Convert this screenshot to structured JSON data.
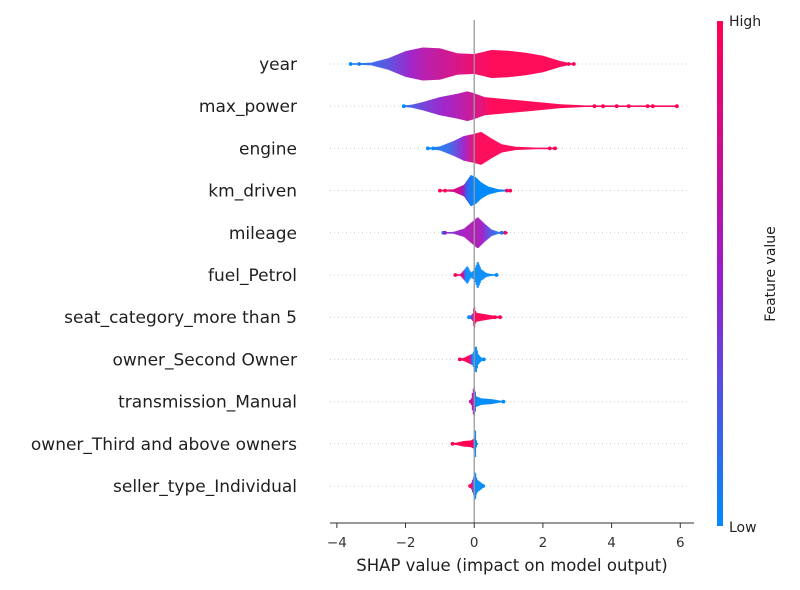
{
  "chart_data": {
    "type": "violin",
    "xlabel": "SHAP value (impact on model output)",
    "xlim": [
      -4.2,
      6.4
    ],
    "xticks": [
      -4,
      -2,
      0,
      2,
      4,
      6
    ],
    "xtick_labels": [
      "−4",
      "−2",
      "0",
      "2",
      "4",
      "6"
    ],
    "colorbar": {
      "label": "Feature value",
      "high_label": "High",
      "low_label": "Low",
      "high_color": "#ff0052",
      "mid_color": "#9b1cc9",
      "low_color": "#008bfb"
    },
    "features": [
      {
        "name": "year",
        "range": [
          -3.6,
          2.9
        ],
        "profile": [
          [
            -3.6,
            0.03
          ],
          [
            -3.0,
            0.08
          ],
          [
            -2.5,
            0.35
          ],
          [
            -2.0,
            0.78
          ],
          [
            -1.5,
            1.0
          ],
          [
            -1.0,
            0.95
          ],
          [
            -0.5,
            0.65
          ],
          [
            0.0,
            0.6
          ],
          [
            0.5,
            0.85
          ],
          [
            1.0,
            0.8
          ],
          [
            1.5,
            0.68
          ],
          [
            2.0,
            0.5
          ],
          [
            2.5,
            0.18
          ],
          [
            2.8,
            0.04
          ]
        ],
        "color": [
          [
            -3.5,
            0.05
          ],
          [
            -2.5,
            0.28
          ],
          [
            -1.5,
            0.62
          ],
          [
            -0.5,
            0.8
          ],
          [
            0.0,
            0.9
          ],
          [
            0.5,
            1.0
          ],
          [
            2.9,
            1.0
          ]
        ],
        "outliers": [
          [
            -3.6,
            0.0
          ],
          [
            -3.35,
            0.1
          ],
          [
            2.75,
            1.0
          ],
          [
            2.9,
            1.0
          ]
        ]
      },
      {
        "name": "max_power",
        "range": [
          -2.1,
          5.9
        ],
        "profile": [
          [
            -2.1,
            0.03
          ],
          [
            -1.8,
            0.1
          ],
          [
            -1.5,
            0.25
          ],
          [
            -1.0,
            0.55
          ],
          [
            -0.5,
            0.75
          ],
          [
            -0.2,
            0.9
          ],
          [
            0.0,
            0.78
          ],
          [
            0.3,
            0.55
          ],
          [
            0.8,
            0.45
          ],
          [
            1.5,
            0.32
          ],
          [
            2.0,
            0.22
          ],
          [
            2.5,
            0.12
          ],
          [
            3.2,
            0.05
          ],
          [
            3.8,
            0.02
          ]
        ],
        "color": [
          [
            -2.1,
            0.1
          ],
          [
            -1.5,
            0.35
          ],
          [
            -0.5,
            0.6
          ],
          [
            0.0,
            0.75
          ],
          [
            0.5,
            1.0
          ],
          [
            5.9,
            1.0
          ]
        ],
        "outliers": [
          [
            -2.05,
            0.0
          ],
          [
            3.5,
            1.0
          ],
          [
            3.75,
            1.0
          ],
          [
            4.15,
            1.0
          ],
          [
            4.5,
            1.0
          ],
          [
            5.05,
            1.0
          ],
          [
            5.2,
            1.0
          ],
          [
            5.9,
            1.0
          ]
        ]
      },
      {
        "name": "engine",
        "range": [
          -1.4,
          2.4
        ],
        "profile": [
          [
            -1.4,
            0.03
          ],
          [
            -1.0,
            0.12
          ],
          [
            -0.6,
            0.45
          ],
          [
            -0.3,
            0.75
          ],
          [
            0.0,
            0.88
          ],
          [
            0.2,
            1.0
          ],
          [
            0.5,
            0.6
          ],
          [
            0.8,
            0.25
          ],
          [
            1.2,
            0.1
          ],
          [
            1.8,
            0.05
          ],
          [
            2.4,
            0.02
          ]
        ],
        "color": [
          [
            -1.4,
            0.02
          ],
          [
            -0.7,
            0.18
          ],
          [
            -0.3,
            0.5
          ],
          [
            0.0,
            0.9
          ],
          [
            0.2,
            1.0
          ],
          [
            2.4,
            1.0
          ]
        ],
        "outliers": [
          [
            -1.35,
            0.0
          ],
          [
            -1.2,
            0.0
          ],
          [
            2.2,
            1.0
          ],
          [
            2.35,
            1.0
          ]
        ]
      },
      {
        "name": "km_driven",
        "range": [
          -1.0,
          1.05
        ],
        "profile": [
          [
            -1.0,
            0.03
          ],
          [
            -0.6,
            0.08
          ],
          [
            -0.3,
            0.35
          ],
          [
            -0.1,
            0.95
          ],
          [
            0.05,
            0.8
          ],
          [
            0.2,
            0.5
          ],
          [
            0.4,
            0.25
          ],
          [
            0.7,
            0.08
          ],
          [
            1.05,
            0.03
          ]
        ],
        "color": [
          [
            -1.0,
            1.0
          ],
          [
            -0.4,
            0.7
          ],
          [
            -0.2,
            0.15
          ],
          [
            0.0,
            0.0
          ],
          [
            1.05,
            0.0
          ]
        ],
        "outliers": [
          [
            -1.0,
            1.0
          ],
          [
            -0.85,
            1.0
          ],
          [
            1.05,
            1.0
          ],
          [
            0.95,
            0.9
          ]
        ]
      },
      {
        "name": "mileage",
        "range": [
          -0.95,
          0.95
        ],
        "profile": [
          [
            -0.95,
            0.03
          ],
          [
            -0.6,
            0.06
          ],
          [
            -0.3,
            0.25
          ],
          [
            -0.1,
            0.6
          ],
          [
            0.1,
            0.95
          ],
          [
            0.3,
            0.55
          ],
          [
            0.5,
            0.2
          ],
          [
            0.7,
            0.06
          ],
          [
            0.95,
            0.03
          ]
        ],
        "color": [
          [
            -0.95,
            0.3
          ],
          [
            -0.3,
            0.55
          ],
          [
            0.0,
            0.6
          ],
          [
            0.2,
            0.55
          ],
          [
            0.4,
            0.3
          ],
          [
            0.7,
            0.1
          ],
          [
            0.95,
            0.8
          ]
        ],
        "outliers": [
          [
            -0.9,
            0.1
          ],
          [
            -0.85,
            0.5
          ],
          [
            0.9,
            0.9
          ],
          [
            0.8,
            0.1
          ]
        ]
      },
      {
        "name": "fuel_Petrol",
        "range": [
          -0.6,
          0.65
        ],
        "profile": [
          [
            -0.6,
            0.02
          ],
          [
            -0.4,
            0.05
          ],
          [
            -0.2,
            0.55
          ],
          [
            -0.1,
            0.15
          ],
          [
            0.0,
            0.3
          ],
          [
            0.1,
            0.85
          ],
          [
            0.2,
            0.35
          ],
          [
            0.35,
            0.12
          ],
          [
            0.5,
            0.06
          ],
          [
            0.65,
            0.02
          ]
        ],
        "color": [
          [
            -0.6,
            1.0
          ],
          [
            -0.35,
            1.0
          ],
          [
            -0.25,
            0.0
          ],
          [
            0.65,
            0.0
          ]
        ],
        "outliers": [
          [
            -0.55,
            1.0
          ],
          [
            -0.35,
            0.7
          ],
          [
            0.65,
            0.0
          ]
        ]
      },
      {
        "name": "seat_category_more than 5",
        "range": [
          -0.15,
          0.8
        ],
        "profile": [
          [
            -0.15,
            0.03
          ],
          [
            -0.05,
            0.2
          ],
          [
            0.0,
            0.72
          ],
          [
            0.05,
            0.28
          ],
          [
            0.2,
            0.22
          ],
          [
            0.4,
            0.15
          ],
          [
            0.6,
            0.08
          ],
          [
            0.8,
            0.03
          ]
        ],
        "color": [
          [
            -0.15,
            0.0
          ],
          [
            -0.05,
            0.6
          ],
          [
            0.0,
            1.0
          ],
          [
            0.8,
            1.0
          ]
        ],
        "outliers": [
          [
            -0.15,
            0.0
          ],
          [
            0.75,
            1.0
          ],
          [
            0.6,
            1.0
          ]
        ]
      },
      {
        "name": "owner_Second Owner",
        "range": [
          -0.45,
          0.3
        ],
        "profile": [
          [
            -0.45,
            0.03
          ],
          [
            -0.3,
            0.1
          ],
          [
            -0.15,
            0.25
          ],
          [
            -0.05,
            0.35
          ],
          [
            0.05,
            0.85
          ],
          [
            0.12,
            0.3
          ],
          [
            0.2,
            0.12
          ],
          [
            0.3,
            0.04
          ]
        ],
        "color": [
          [
            -0.45,
            1.0
          ],
          [
            -0.15,
            1.0
          ],
          [
            -0.05,
            0.0
          ],
          [
            0.3,
            0.0
          ]
        ],
        "outliers": [
          [
            -0.42,
            1.0
          ],
          [
            0.28,
            0.0
          ]
        ]
      },
      {
        "name": "transmission_Manual",
        "range": [
          -0.1,
          0.85
        ],
        "profile": [
          [
            -0.1,
            0.05
          ],
          [
            -0.04,
            0.7
          ],
          [
            0.0,
            0.92
          ],
          [
            0.06,
            0.32
          ],
          [
            0.2,
            0.2
          ],
          [
            0.5,
            0.15
          ],
          [
            0.7,
            0.08
          ],
          [
            0.85,
            0.03
          ]
        ],
        "color": [
          [
            -0.1,
            0.7
          ],
          [
            -0.02,
            0.6
          ],
          [
            0.05,
            0.0
          ],
          [
            0.85,
            0.0
          ]
        ],
        "outliers": [
          [
            -0.1,
            0.7
          ],
          [
            0.85,
            0.0
          ]
        ]
      },
      {
        "name": "owner_Third and above owners",
        "range": [
          -0.65,
          0.08
        ],
        "profile": [
          [
            -0.65,
            0.03
          ],
          [
            -0.5,
            0.08
          ],
          [
            -0.3,
            0.17
          ],
          [
            -0.1,
            0.2
          ],
          [
            0.0,
            0.32
          ],
          [
            0.03,
            0.9
          ],
          [
            0.06,
            0.25
          ],
          [
            0.08,
            0.03
          ]
        ],
        "color": [
          [
            -0.65,
            1.0
          ],
          [
            -0.05,
            1.0
          ],
          [
            0.01,
            0.0
          ],
          [
            0.08,
            0.0
          ]
        ],
        "outliers": [
          [
            -0.63,
            1.0
          ]
        ]
      },
      {
        "name": "seller_type_Individual",
        "range": [
          -0.15,
          0.28
        ],
        "profile": [
          [
            -0.15,
            0.03
          ],
          [
            -0.08,
            0.2
          ],
          [
            -0.02,
            0.55
          ],
          [
            0.02,
            0.95
          ],
          [
            0.08,
            0.4
          ],
          [
            0.15,
            0.28
          ],
          [
            0.22,
            0.18
          ],
          [
            0.28,
            0.03
          ]
        ],
        "color": [
          [
            -0.15,
            1.0
          ],
          [
            -0.05,
            0.5
          ],
          [
            0.0,
            0.0
          ],
          [
            0.28,
            0.0
          ]
        ],
        "outliers": [
          [
            -0.12,
            1.0
          ],
          [
            0.26,
            0.0
          ]
        ]
      }
    ]
  }
}
